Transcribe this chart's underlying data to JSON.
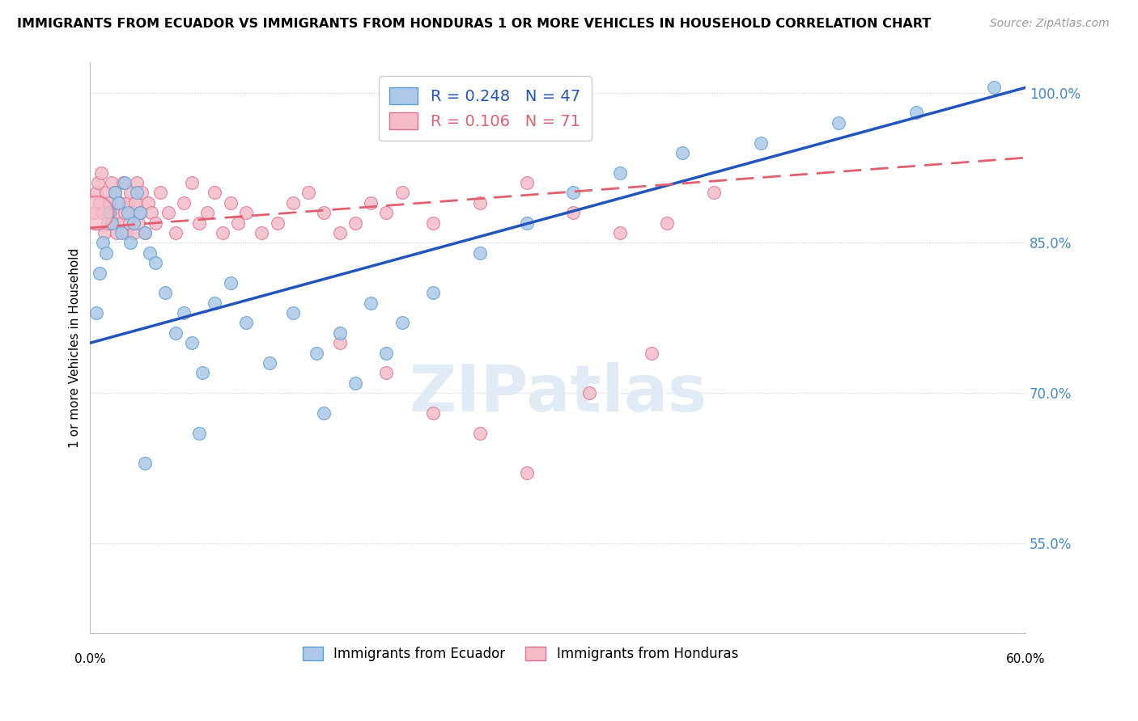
{
  "title": "IMMIGRANTS FROM ECUADOR VS IMMIGRANTS FROM HONDURAS 1 OR MORE VEHICLES IN HOUSEHOLD CORRELATION CHART",
  "source": "Source: ZipAtlas.com",
  "ylabel": "1 or more Vehicles in Household",
  "ecuador_label": "Immigrants from Ecuador",
  "ecuador_R": 0.248,
  "ecuador_N": 47,
  "honduras_label": "Immigrants from Honduras",
  "honduras_R": 0.106,
  "honduras_N": 71,
  "ecuador_color": "#adc8e8",
  "ecuador_edge": "#5a9fd4",
  "honduras_color": "#f5bcc8",
  "honduras_edge": "#e07090",
  "line_ecuador_color": "#2255bb",
  "line_honduras_color": "#e06070",
  "xmin": 0.0,
  "xmax": 60.0,
  "ymin": 46.0,
  "ymax": 103.0,
  "y_ticks": [
    55.0,
    70.0,
    85.0,
    100.0
  ],
  "watermark_text": "ZIPatlas",
  "ecuador_line_x0": 0.0,
  "ecuador_line_y0": 75.0,
  "ecuador_line_x1": 60.0,
  "ecuador_line_y1": 100.5,
  "honduras_line_x0": 0.0,
  "honduras_line_y0": 86.5,
  "honduras_line_x1": 60.0,
  "honduras_line_y1": 93.5,
  "ec_pts_x": [
    0.4,
    0.6,
    0.8,
    1.0,
    1.2,
    1.4,
    1.6,
    1.8,
    2.0,
    2.2,
    2.4,
    2.6,
    2.8,
    3.0,
    3.2,
    3.5,
    3.8,
    4.2,
    4.8,
    5.5,
    6.0,
    6.5,
    7.2,
    8.0,
    9.0,
    10.0,
    11.5,
    13.0,
    14.5,
    16.0,
    18.0,
    20.0,
    22.0,
    15.0,
    17.0,
    19.0,
    25.0,
    28.0,
    31.0,
    34.0,
    38.0,
    43.0,
    48.0,
    53.0,
    58.0,
    3.5,
    7.0
  ],
  "ec_pts_y": [
    78.0,
    82.0,
    85.0,
    84.0,
    88.0,
    87.0,
    90.0,
    89.0,
    86.0,
    91.0,
    88.0,
    85.0,
    87.0,
    90.0,
    88.0,
    86.0,
    84.0,
    83.0,
    80.0,
    76.0,
    78.0,
    75.0,
    72.0,
    79.0,
    81.0,
    77.0,
    73.0,
    78.0,
    74.0,
    76.0,
    79.0,
    77.0,
    80.0,
    68.0,
    71.0,
    74.0,
    84.0,
    87.0,
    90.0,
    92.0,
    94.0,
    95.0,
    97.0,
    98.0,
    100.5,
    63.0,
    66.0
  ],
  "hon_pts_x": [
    0.3,
    0.4,
    0.5,
    0.6,
    0.7,
    0.8,
    0.9,
    1.0,
    1.1,
    1.2,
    1.3,
    1.4,
    1.5,
    1.6,
    1.7,
    1.8,
    1.9,
    2.0,
    2.1,
    2.2,
    2.3,
    2.4,
    2.5,
    2.6,
    2.7,
    2.8,
    2.9,
    3.0,
    3.1,
    3.2,
    3.3,
    3.5,
    3.7,
    3.9,
    4.2,
    4.5,
    5.0,
    5.5,
    6.0,
    6.5,
    7.0,
    7.5,
    8.0,
    8.5,
    9.0,
    9.5,
    10.0,
    11.0,
    12.0,
    13.0,
    14.0,
    15.0,
    16.0,
    17.0,
    18.0,
    19.0,
    20.0,
    22.0,
    25.0,
    28.0,
    31.0,
    34.0,
    37.0,
    40.0,
    16.0,
    19.0,
    22.0,
    25.0,
    28.0,
    32.0,
    36.0
  ],
  "hon_pts_y": [
    88.0,
    90.0,
    91.0,
    89.0,
    92.0,
    88.0,
    86.0,
    90.0,
    87.0,
    89.0,
    88.0,
    91.0,
    87.0,
    90.0,
    86.0,
    88.0,
    89.0,
    87.0,
    91.0,
    88.0,
    86.0,
    89.0,
    87.0,
    90.0,
    88.0,
    86.0,
    89.0,
    91.0,
    87.0,
    88.0,
    90.0,
    86.0,
    89.0,
    88.0,
    87.0,
    90.0,
    88.0,
    86.0,
    89.0,
    91.0,
    87.0,
    88.0,
    90.0,
    86.0,
    89.0,
    87.0,
    88.0,
    86.0,
    87.0,
    89.0,
    90.0,
    88.0,
    86.0,
    87.0,
    89.0,
    88.0,
    90.0,
    87.0,
    89.0,
    91.0,
    88.0,
    86.0,
    87.0,
    90.0,
    75.0,
    72.0,
    68.0,
    66.0,
    62.0,
    70.0,
    74.0
  ],
  "hon_large_x": 0.4,
  "hon_large_y": 88.0,
  "hon_large_size": 900
}
